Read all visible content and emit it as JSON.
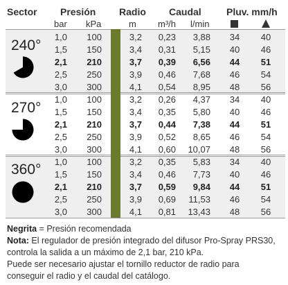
{
  "headers": {
    "sector": "Sector",
    "presion": "Presión",
    "radio": "Radio",
    "caudal": "Caudal",
    "pluv": "Pluv. mm/h",
    "bar": "bar",
    "kpa": "kPa",
    "m": "m",
    "m3h": "m³/h",
    "lmin": "l/min",
    "square_icon": "square-icon",
    "triangle_icon": "triangle-icon"
  },
  "sectors": [
    {
      "label": "240°",
      "arc_degrees": 240,
      "rows": [
        {
          "bar": "1,0",
          "kpa": "100",
          "m": "3,2",
          "m3h": "0,23",
          "lmin": "3,88",
          "sq": "34",
          "tri": "40",
          "bold": false
        },
        {
          "bar": "1,5",
          "kpa": "150",
          "m": "3,4",
          "m3h": "0,31",
          "lmin": "5,15",
          "sq": "40",
          "tri": "46",
          "bold": false
        },
        {
          "bar": "2,1",
          "kpa": "210",
          "m": "3,7",
          "m3h": "0,39",
          "lmin": "6,56",
          "sq": "44",
          "tri": "51",
          "bold": true
        },
        {
          "bar": "2,5",
          "kpa": "250",
          "m": "3,9",
          "m3h": "0,46",
          "lmin": "7,68",
          "sq": "46",
          "tri": "54",
          "bold": false
        },
        {
          "bar": "3,0",
          "kpa": "300",
          "m": "4,1",
          "m3h": "0,54",
          "lmin": "8,95",
          "sq": "48",
          "tri": "56",
          "bold": false
        }
      ]
    },
    {
      "label": "270°",
      "arc_degrees": 270,
      "rows": [
        {
          "bar": "1,0",
          "kpa": "100",
          "m": "3,2",
          "m3h": "0,26",
          "lmin": "4,37",
          "sq": "34",
          "tri": "40",
          "bold": false
        },
        {
          "bar": "1,5",
          "kpa": "150",
          "m": "3,4",
          "m3h": "0,35",
          "lmin": "5,80",
          "sq": "40",
          "tri": "46",
          "bold": false
        },
        {
          "bar": "2,1",
          "kpa": "210",
          "m": "3,7",
          "m3h": "0,44",
          "lmin": "7,38",
          "sq": "44",
          "tri": "51",
          "bold": true
        },
        {
          "bar": "2,5",
          "kpa": "250",
          "m": "3,9",
          "m3h": "0,52",
          "lmin": "8,65",
          "sq": "46",
          "tri": "54",
          "bold": false
        },
        {
          "bar": "3,0",
          "kpa": "300",
          "m": "4,1",
          "m3h": "0,60",
          "lmin": "10,07",
          "sq": "48",
          "tri": "56",
          "bold": false
        }
      ]
    },
    {
      "label": "360°",
      "arc_degrees": 360,
      "rows": [
        {
          "bar": "1,0",
          "kpa": "100",
          "m": "3,2",
          "m3h": "0,35",
          "lmin": "5,83",
          "sq": "34",
          "tri": "40",
          "bold": false
        },
        {
          "bar": "1,5",
          "kpa": "150",
          "m": "3,4",
          "m3h": "0,46",
          "lmin": "7,73",
          "sq": "40",
          "tri": "46",
          "bold": false
        },
        {
          "bar": "2,1",
          "kpa": "210",
          "m": "3,7",
          "m3h": "0,59",
          "lmin": "9,84",
          "sq": "44",
          "tri": "51",
          "bold": true
        },
        {
          "bar": "2,5",
          "kpa": "250",
          "m": "3,9",
          "m3h": "0,69",
          "lmin": "11,53",
          "sq": "46",
          "tri": "54",
          "bold": false
        },
        {
          "bar": "3,0",
          "kpa": "300",
          "m": "4,1",
          "m3h": "0,81",
          "lmin": "13,43",
          "sq": "48",
          "tri": "56",
          "bold": false
        }
      ]
    }
  ],
  "notes": {
    "negrita_label": "Negrita",
    "negrita_text": " = Presión recomendada",
    "nota_label": "Nota:",
    "nota_line1": " El regulador de presión integrado del difusor Pro-Spray PRS30,",
    "nota_line2": "controla la salida a un máximo de 2,1 bar, 210 kPa.",
    "nota_line3": "Puede ser necesario ajustar el tornillo reductor de radio para",
    "nota_line4": "conseguir el radio y el caudal del catálogo."
  },
  "colors": {
    "radius_bar": "#6b7a2c",
    "band_background": "#efefef",
    "pie_fill": "#000000"
  }
}
